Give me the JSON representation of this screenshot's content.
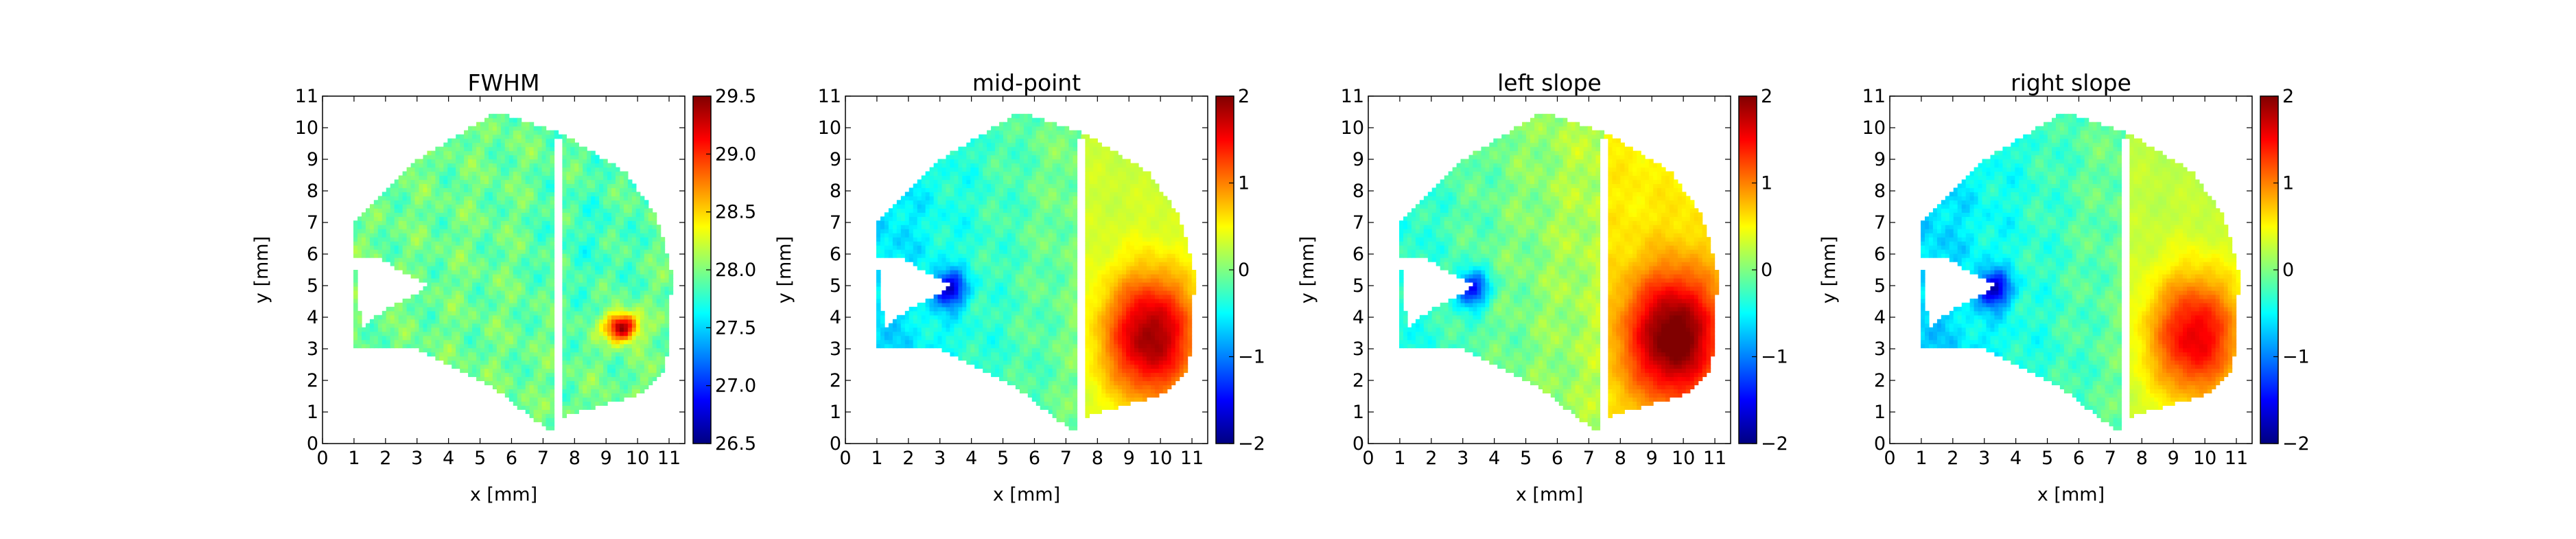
{
  "chart_data": [
    {
      "type": "heatmap",
      "title": "FWHM",
      "xlabel": "x [mm]",
      "ylabel": "y [mm]",
      "xlim": [
        0,
        11.5
      ],
      "ylim": [
        0,
        11
      ],
      "xticks": [
        0,
        1,
        2,
        3,
        4,
        5,
        6,
        7,
        8,
        9,
        10,
        11
      ],
      "yticks": [
        0,
        1,
        2,
        3,
        4,
        5,
        6,
        7,
        8,
        9,
        10,
        11
      ],
      "colormap": "jet",
      "colorbar": {
        "min": 26.5,
        "max": 29.5,
        "ticks": [
          "26.5",
          "27.0",
          "27.5",
          "28.0",
          "28.5",
          "29.0",
          "29.5"
        ]
      },
      "field": "fwhm"
    },
    {
      "type": "heatmap",
      "title": "mid-point",
      "xlabel": "x [mm]",
      "ylabel": "y [mm]",
      "xlim": [
        0,
        11.5
      ],
      "ylim": [
        0,
        11
      ],
      "xticks": [
        0,
        1,
        2,
        3,
        4,
        5,
        6,
        7,
        8,
        9,
        10,
        11
      ],
      "yticks": [
        0,
        1,
        2,
        3,
        4,
        5,
        6,
        7,
        8,
        9,
        10,
        11
      ],
      "colormap": "jet",
      "colorbar": {
        "min": -2,
        "max": 2,
        "ticks": [
          "−2",
          "−1",
          "0",
          "1",
          "2"
        ]
      },
      "field": "mid"
    },
    {
      "type": "heatmap",
      "title": "left slope",
      "xlabel": "x [mm]",
      "ylabel": "y [mm]",
      "xlim": [
        0,
        11.5
      ],
      "ylim": [
        0,
        11
      ],
      "xticks": [
        0,
        1,
        2,
        3,
        4,
        5,
        6,
        7,
        8,
        9,
        10,
        11
      ],
      "yticks": [
        0,
        1,
        2,
        3,
        4,
        5,
        6,
        7,
        8,
        9,
        10,
        11
      ],
      "colormap": "jet",
      "colorbar": {
        "min": -2,
        "max": 2,
        "ticks": [
          "−2",
          "−1",
          "0",
          "1",
          "2"
        ]
      },
      "field": "left"
    },
    {
      "type": "heatmap",
      "title": "right slope",
      "xlabel": "x [mm]",
      "ylabel": "y [mm]",
      "xlim": [
        0,
        11.5
      ],
      "ylim": [
        0,
        11
      ],
      "xticks": [
        0,
        1,
        2,
        3,
        4,
        5,
        6,
        7,
        8,
        9,
        10,
        11
      ],
      "yticks": [
        0,
        1,
        2,
        3,
        4,
        5,
        6,
        7,
        8,
        9,
        10,
        11
      ],
      "colormap": "jet",
      "colorbar": {
        "min": -2,
        "max": 2,
        "ticks": [
          "−2",
          "−1",
          "0",
          "1",
          "2"
        ]
      },
      "field": "right"
    }
  ]
}
